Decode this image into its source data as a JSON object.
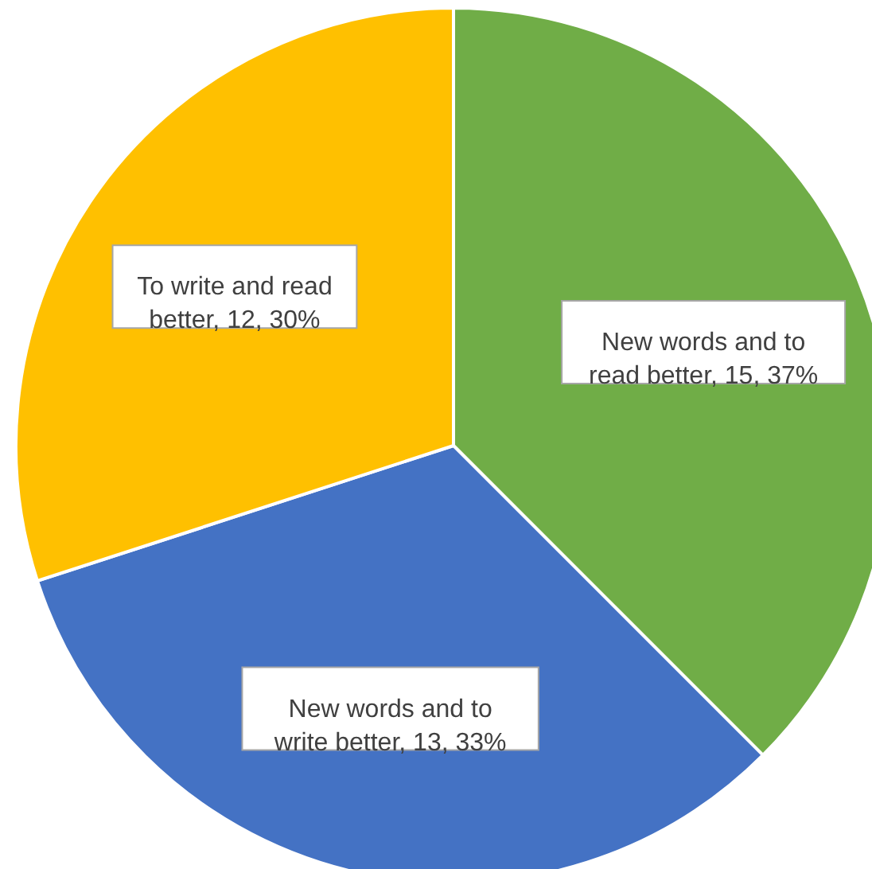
{
  "chart_data": {
    "type": "pie",
    "categories": [
      "New words and to read better",
      "New words and to write better",
      "To write and read better"
    ],
    "values": [
      15,
      13,
      12
    ],
    "colors": [
      "#70ad47",
      "#4472c4",
      "#ffc000"
    ],
    "value_labels": [
      "15, 37%",
      "13, 33%",
      "12, 30%"
    ]
  }
}
